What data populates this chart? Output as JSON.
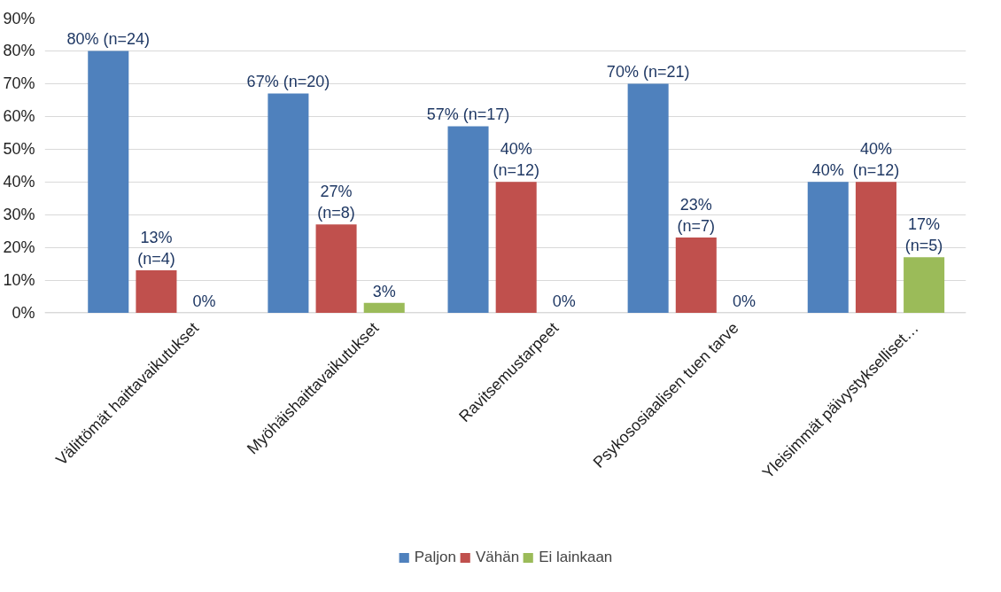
{
  "chart_data": {
    "type": "bar",
    "categories": [
      "Välittömät haittavaikutukset",
      "Myöhäishaittavaikutukset",
      "Ravitsemustarpeet",
      "Psykososiaalisen tuen tarve",
      "Yleisimmät päivystykselliset…"
    ],
    "series": [
      {
        "name": "Paljon",
        "color": "#4f81bd",
        "values": [
          80,
          67,
          57,
          70,
          40
        ],
        "value_labels": [
          "80% (n=24)",
          "67% (n=20)",
          "57% (n=17)",
          "70% (n=21)",
          "40%"
        ]
      },
      {
        "name": "Vähän",
        "color": "#c0504d",
        "values": [
          13,
          27,
          40,
          23,
          40
        ],
        "value_labels": [
          "13% (n=4)",
          "27% (n=8)",
          "40% (n=12)",
          "23% (n=7)",
          "40% (n=12)"
        ]
      },
      {
        "name": "Ei lainkaan",
        "color": "#9bbb59",
        "values": [
          0,
          3,
          0,
          0,
          17
        ],
        "value_labels": [
          "0%",
          "3%",
          "0%",
          "0%",
          "17% (n=5)"
        ]
      }
    ],
    "ylim": [
      0,
      90
    ],
    "yticks": [
      {
        "value": 0,
        "label": "0%"
      },
      {
        "value": 10,
        "label": "10%"
      },
      {
        "value": 20,
        "label": "20%"
      },
      {
        "value": 30,
        "label": "30%"
      },
      {
        "value": 40,
        "label": "40%"
      },
      {
        "value": 50,
        "label": "50%"
      },
      {
        "value": 60,
        "label": "60%"
      },
      {
        "value": 70,
        "label": "70%"
      },
      {
        "value": 80,
        "label": "80%"
      },
      {
        "value": 90,
        "label": "90%"
      }
    ],
    "grid": "y",
    "legend": "bottom"
  }
}
